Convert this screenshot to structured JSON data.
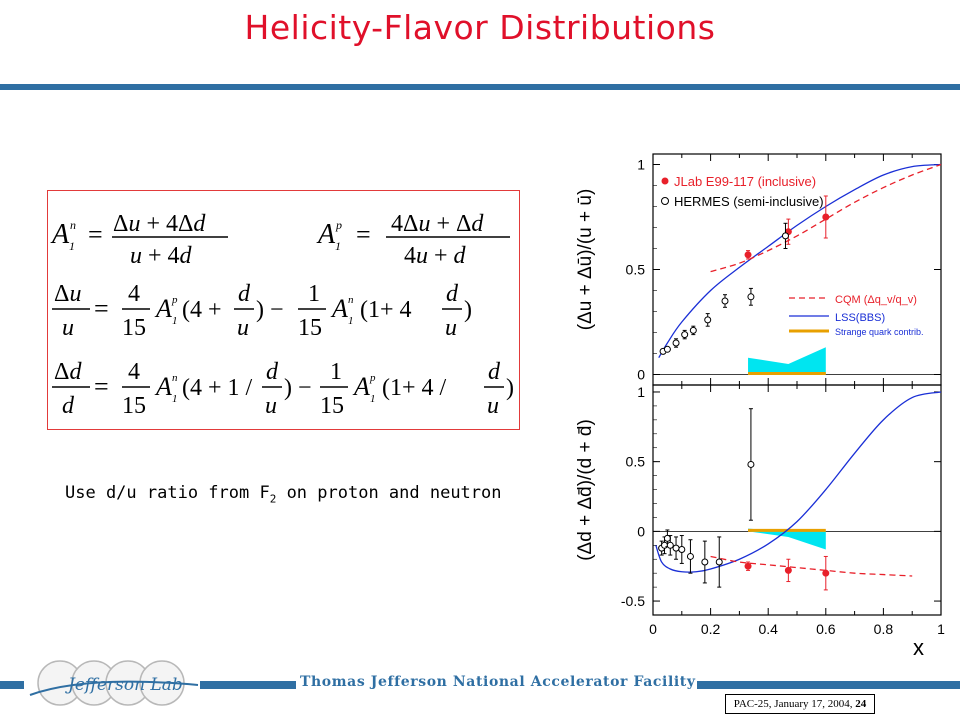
{
  "slide": {
    "title": "Helicity-Flavor Distributions",
    "note_main": "Use d/u ratio from F",
    "note_sub": "2",
    "note_tail": " on proton and neutron",
    "footer_org": "Thomas Jefferson National Accelerator Facility",
    "footer_date": "PAC-25, January 17, 2004, ",
    "footer_page": "24",
    "logo_text": "Jefferson Lab"
  },
  "formulas": {
    "eq1_left": "A₁ⁿ = (Δu + 4Δd)/(u + 4d)",
    "eq1_right": "A₁ᵖ = (4Δu + Δd)/(4u + d)",
    "eq2": "Δu/u = 4/15 A₁ᵖ(4 + d/u) − 1/15 A₁ⁿ(1 + 4 d/u)",
    "eq3": "Δd/d = 4/15 A₁ⁿ(4 + 1/(d/u)) − 1/15 A₁ᵖ(1 + 4/(d/u))"
  },
  "colors": {
    "title": "#e0102a",
    "rule": "#2f6fa3",
    "jlab": "#e8202a",
    "lss": "#1a2fd6",
    "cqm": "#e8202a",
    "band": "#00e5f0",
    "strange": "#e8a000"
  },
  "chart_data": [
    {
      "type": "scatter",
      "panel": "top",
      "ylabel": "(Δu + Δū)/(u + ū)",
      "xlim": [
        0,
        1
      ],
      "ylim": [
        -0.05,
        1.05
      ],
      "yticks": [
        "0",
        "0.5",
        "1"
      ],
      "grid": false,
      "legend_position": "top-left",
      "legend": [
        "JLab E99-117 (inclusive)",
        "HERMES (semi-inclusive)"
      ],
      "legend2_position": "bottom-right",
      "legend2": [
        "CQM (Δq_v/q_v)",
        "LSS(BBS)",
        "Strange quark contrib."
      ],
      "series": [
        {
          "name": "JLab E99-117 (inclusive)",
          "marker": "filled-circle",
          "x": [
            0.33,
            0.47,
            0.6
          ],
          "y": [
            0.57,
            0.68,
            0.75
          ],
          "err": [
            0.02,
            0.06,
            0.1
          ]
        },
        {
          "name": "HERMES (semi-inclusive)",
          "marker": "open-circle",
          "x": [
            0.035,
            0.05,
            0.08,
            0.11,
            0.14,
            0.19,
            0.25,
            0.34,
            0.46
          ],
          "y": [
            0.11,
            0.12,
            0.15,
            0.19,
            0.21,
            0.26,
            0.35,
            0.37,
            0.66
          ],
          "err": [
            0.01,
            0.01,
            0.02,
            0.02,
            0.02,
            0.03,
            0.03,
            0.04,
            0.06
          ]
        },
        {
          "name": "LSS(BBS)",
          "style": "solid-line",
          "x": [
            0.02,
            0.05,
            0.1,
            0.2,
            0.3,
            0.4,
            0.5,
            0.6,
            0.7,
            0.8,
            0.9,
            1.0
          ],
          "y": [
            0.08,
            0.15,
            0.25,
            0.4,
            0.51,
            0.61,
            0.71,
            0.8,
            0.88,
            0.95,
            0.99,
            1.0
          ]
        },
        {
          "name": "CQM (Δq_v/q_v)",
          "style": "dashed-line",
          "x": [
            0.2,
            0.3,
            0.4,
            0.5,
            0.6,
            0.7,
            0.8,
            0.9,
            1.0
          ],
          "y": [
            0.49,
            0.53,
            0.59,
            0.66,
            0.74,
            0.82,
            0.89,
            0.95,
            1.0
          ]
        },
        {
          "name": "Strange quark contrib.",
          "style": "band",
          "x": [
            0.33,
            0.47,
            0.6
          ],
          "y_low": [
            0.0,
            0.0,
            0.0
          ],
          "y_high": [
            0.08,
            0.05,
            0.13
          ]
        }
      ]
    },
    {
      "type": "scatter",
      "panel": "bottom",
      "ylabel": "(Δd + Δd̄)/(d + d̄)",
      "xlabel": "x",
      "xlim": [
        0,
        1
      ],
      "ylim": [
        -0.6,
        1.05
      ],
      "xticks": [
        "0",
        "0.2",
        "0.4",
        "0.6",
        "0.8",
        "1"
      ],
      "yticks": [
        "-0.5",
        "0",
        "0.5",
        "1"
      ],
      "grid": false,
      "series": [
        {
          "name": "JLab E99-117 (inclusive)",
          "marker": "filled-circle",
          "x": [
            0.33,
            0.47,
            0.6
          ],
          "y": [
            -0.25,
            -0.28,
            -0.3
          ],
          "err": [
            0.03,
            0.08,
            0.12
          ]
        },
        {
          "name": "HERMES (semi-inclusive)",
          "marker": "open-circle",
          "x": [
            0.03,
            0.04,
            0.05,
            0.06,
            0.08,
            0.1,
            0.13,
            0.18,
            0.23,
            0.34
          ],
          "y": [
            -0.12,
            -0.1,
            -0.05,
            -0.1,
            -0.12,
            -0.13,
            -0.18,
            -0.22,
            -0.22,
            0.48
          ],
          "err": [
            0.05,
            0.06,
            0.06,
            0.07,
            0.08,
            0.1,
            0.12,
            0.15,
            0.18,
            0.4
          ]
        },
        {
          "name": "LSS(BBS)",
          "style": "solid-line",
          "x": [
            0.01,
            0.03,
            0.06,
            0.1,
            0.15,
            0.2,
            0.3,
            0.4,
            0.5,
            0.6,
            0.7,
            0.8,
            0.9,
            1.0
          ],
          "y": [
            -0.1,
            -0.22,
            -0.27,
            -0.29,
            -0.29,
            -0.27,
            -0.2,
            -0.09,
            0.07,
            0.3,
            0.56,
            0.8,
            0.96,
            1.0
          ]
        },
        {
          "name": "CQM (Δq_v/q_v)",
          "style": "dashed-line",
          "x": [
            0.2,
            0.3,
            0.4,
            0.5,
            0.6,
            0.7,
            0.8,
            0.9
          ],
          "y": [
            -0.18,
            -0.22,
            -0.24,
            -0.26,
            -0.28,
            -0.3,
            -0.31,
            -0.32
          ]
        },
        {
          "name": "Strange quark contrib.",
          "style": "band",
          "x": [
            0.33,
            0.47,
            0.6
          ],
          "y_low": [
            0.0,
            -0.04,
            -0.13
          ],
          "y_high": [
            0.02,
            0.0,
            0.0
          ]
        }
      ]
    }
  ]
}
